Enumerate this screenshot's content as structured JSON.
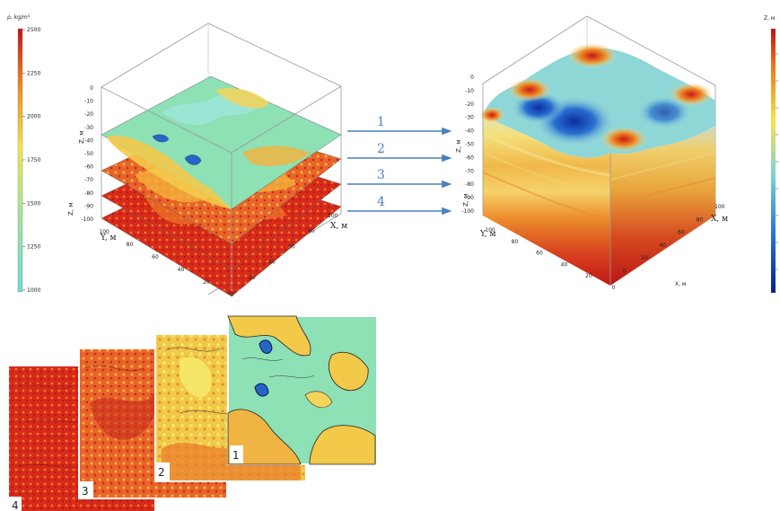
{
  "left_colorbar": {
    "title": "ρ, kg/m³",
    "ticks": [
      "2500",
      "2250",
      "2000",
      "1750",
      "1500",
      "1250",
      "1000"
    ]
  },
  "right_colorbar": {
    "title": "Z, м"
  },
  "left_cube": {
    "z_axis_label": "Z, м",
    "z_ticks": [
      "0",
      "-10",
      "-20",
      "-30",
      "-40",
      "-50",
      "-60",
      "-70",
      "-80",
      "-90",
      "-100"
    ],
    "y_axis_label": "Y, м",
    "y_ticks": [
      "100",
      "80",
      "60",
      "40",
      "20",
      "0"
    ],
    "x_axis_label": "X, м",
    "x_ticks": [
      "100",
      "80",
      "60",
      "40",
      "20",
      "0"
    ]
  },
  "right_cube": {
    "z_axis_label": "Z, м",
    "z_ticks": [
      "0",
      "-10",
      "-20",
      "-30",
      "-40",
      "-50",
      "-60",
      "-70",
      "-80",
      "-90",
      "-100"
    ],
    "y_axis_label": "Y, м",
    "y_ticks": [
      "100",
      "80",
      "60",
      "40",
      "20",
      "0"
    ],
    "x_axis_label": "X, м",
    "x_ticks": [
      "100",
      "80",
      "60",
      "40",
      "20",
      "0"
    ],
    "x_axis_label_bottom": "X, м"
  },
  "arrows": [
    "1",
    "2",
    "3",
    "4"
  ],
  "map_panels": [
    "4",
    "3",
    "2",
    "1"
  ],
  "colors": {
    "arrow": "#4a7fc1",
    "density_low": "#62d7d6",
    "density_high": "#c8141a",
    "elev_low": "#0a2ea0",
    "elev_high": "#c8141a"
  }
}
